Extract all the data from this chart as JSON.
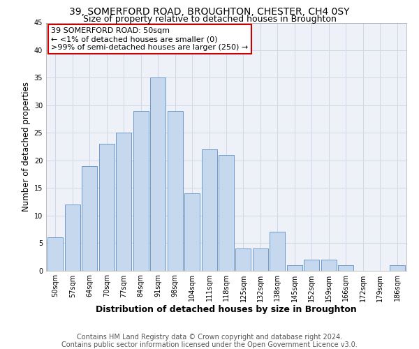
{
  "title": "39, SOMERFORD ROAD, BROUGHTON, CHESTER, CH4 0SY",
  "subtitle": "Size of property relative to detached houses in Broughton",
  "xlabel": "Distribution of detached houses by size in Broughton",
  "ylabel": "Number of detached properties",
  "footer_line1": "Contains HM Land Registry data © Crown copyright and database right 2024.",
  "footer_line2": "Contains public sector information licensed under the Open Government Licence v3.0.",
  "categories": [
    "50sqm",
    "57sqm",
    "64sqm",
    "70sqm",
    "77sqm",
    "84sqm",
    "91sqm",
    "98sqm",
    "104sqm",
    "111sqm",
    "118sqm",
    "125sqm",
    "132sqm",
    "138sqm",
    "145sqm",
    "152sqm",
    "159sqm",
    "166sqm",
    "172sqm",
    "179sqm",
    "186sqm"
  ],
  "values": [
    6,
    12,
    19,
    23,
    25,
    29,
    35,
    29,
    14,
    22,
    21,
    4,
    4,
    7,
    1,
    2,
    2,
    1,
    0,
    0,
    1
  ],
  "bar_color": "#c5d8ed",
  "bar_edge_color": "#5b8ec4",
  "ylim": [
    0,
    45
  ],
  "yticks": [
    0,
    5,
    10,
    15,
    20,
    25,
    30,
    35,
    40,
    45
  ],
  "annotation_title": "39 SOMERFORD ROAD: 50sqm",
  "annotation_line2": "← <1% of detached houses are smaller (0)",
  "annotation_line3": ">99% of semi-detached houses are larger (250) →",
  "annotation_box_color": "#ffffff",
  "annotation_border_color": "#cc0000",
  "title_fontsize": 10,
  "subtitle_fontsize": 9,
  "axis_label_fontsize": 8.5,
  "tick_fontsize": 7,
  "footer_fontsize": 7,
  "annotation_fontsize": 8
}
